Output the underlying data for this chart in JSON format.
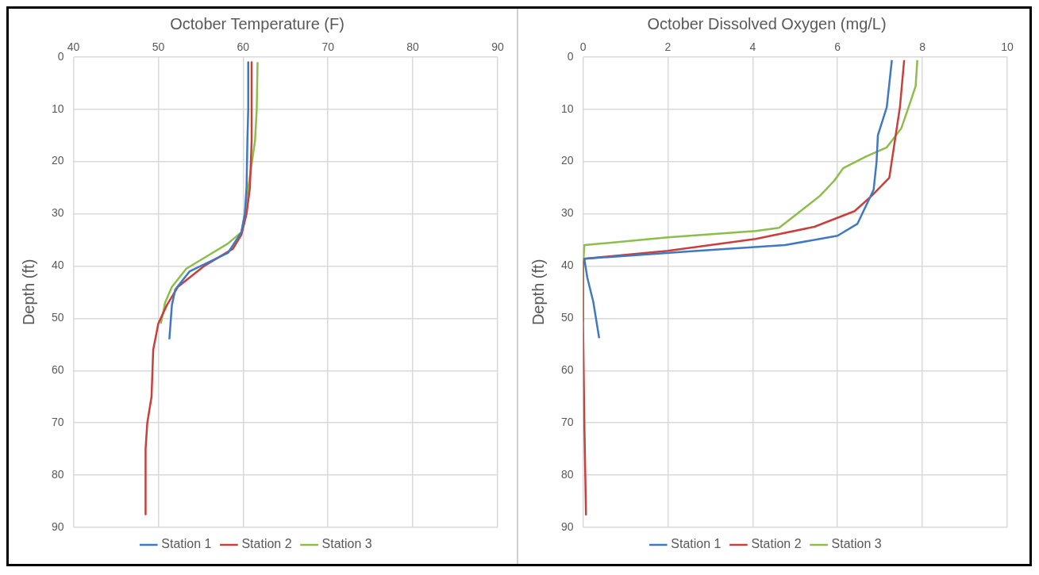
{
  "chart_data": [
    {
      "type": "line",
      "title": "October Temperature (F)",
      "ylabel": "Depth (ft)",
      "xlim": [
        40,
        90
      ],
      "xticks": [
        40,
        50,
        60,
        70,
        80,
        90
      ],
      "ylim": [
        90,
        0
      ],
      "yticks": [
        0,
        10,
        20,
        30,
        40,
        50,
        60,
        70,
        80,
        90
      ],
      "grid": true,
      "legend": "bottom",
      "marker": "none",
      "series": [
        {
          "name": "Station 1",
          "color": "#3f78c3",
          "x": [
            60.6,
            60.6,
            60.5,
            60.4,
            60.2,
            59.8,
            58.2,
            53.7,
            52,
            51.6,
            51.3
          ],
          "values": [
            1,
            10,
            16,
            25,
            30,
            33.5,
            37.5,
            41,
            44.5,
            47.5,
            54
          ]
        },
        {
          "name": "Station 2",
          "color": "#c8403c",
          "x": [
            61,
            61,
            60.8,
            60.4,
            59.8,
            58.8,
            55.4,
            52.3,
            51,
            50,
            49.4,
            49.2,
            48.7,
            48.5,
            48.5
          ],
          "values": [
            1,
            16,
            25,
            30,
            34,
            36.7,
            40,
            44,
            47.5,
            51,
            56,
            65,
            70,
            75,
            87.5
          ]
        },
        {
          "name": "Station 3",
          "color": "#8dbd4a",
          "x": [
            61.7,
            61.6,
            61.4,
            60.6,
            60.2,
            59.8,
            58.2,
            53.3,
            51.6,
            50.8,
            50.3
          ],
          "values": [
            1,
            10,
            16,
            25,
            30,
            33.5,
            35.7,
            40.5,
            44,
            47,
            51
          ]
        }
      ]
    },
    {
      "type": "line",
      "title": "October Dissolved Oxygen (mg/L)",
      "ylabel": "Depth (ft)",
      "xlim": [
        0,
        10
      ],
      "xticks": [
        0,
        2,
        4,
        6,
        8,
        10
      ],
      "ylim": [
        90,
        0
      ],
      "yticks": [
        0,
        10,
        20,
        30,
        40,
        50,
        60,
        70,
        80,
        90
      ],
      "grid": true,
      "legend": "bottom",
      "marker": "none",
      "series": [
        {
          "name": "Station 1",
          "color": "#3f78c3",
          "x": [
            7.28,
            7.16,
            6.95,
            6.92,
            6.85,
            6.47,
            6,
            4.76,
            2.7,
            0.03,
            0.1,
            0.24,
            0.38
          ],
          "values": [
            0.6,
            9.6,
            15,
            20,
            25.4,
            31.9,
            34.2,
            36,
            37.1,
            38.6,
            42.2,
            46.8,
            53.8
          ]
        },
        {
          "name": "Station 2",
          "color": "#c8403c",
          "x": [
            7.57,
            7.47,
            7.36,
            7.22,
            6.8,
            6.4,
            5.45,
            4.07,
            2,
            0.03,
            0,
            0,
            0.03,
            0.07
          ],
          "values": [
            0.6,
            9.6,
            15.5,
            23.1,
            26.6,
            29.5,
            32.5,
            34.8,
            37.1,
            38.6,
            39.5,
            51,
            70,
            87.7
          ]
        },
        {
          "name": "Station 3",
          "color": "#8dbd4a",
          "x": [
            7.88,
            7.84,
            7.7,
            7.5,
            7.16,
            6.68,
            6.13,
            5.92,
            5.58,
            5.03,
            4.62,
            4.07,
            2,
            0.03,
            0,
            0
          ],
          "values": [
            0.6,
            5.6,
            9,
            13.7,
            17.3,
            19,
            21.3,
            23.7,
            26.6,
            30.1,
            32.7,
            33.3,
            34.5,
            36,
            40,
            50.5
          ]
        }
      ]
    }
  ]
}
